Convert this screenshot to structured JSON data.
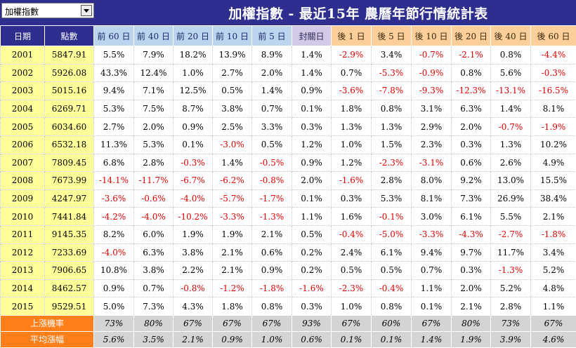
{
  "selector": {
    "value": "加權指數"
  },
  "title": "加權指數 - 最近15年 農曆年節行情統計表",
  "headers": [
    "日期",
    "點數",
    "前 60 日",
    "前 40 日",
    "前 20 日",
    "前 10 日",
    "前 5 日",
    "封關日",
    "後 1 日",
    "後 5 日",
    "後 10 日",
    "後 20 日",
    "後 40 日",
    "後 60 日"
  ],
  "rows": [
    {
      "year": "2001",
      "points": "5847.91",
      "values": [
        "5.5%",
        "7.9%",
        "18.2%",
        "13.9%",
        "8.9%",
        "1.4%",
        "-2.9%",
        "3.4%",
        "-0.7%",
        "-2.1%",
        "0.8%",
        "-4.4%"
      ]
    },
    {
      "year": "2002",
      "points": "5926.08",
      "values": [
        "43.3%",
        "12.4%",
        "1.0%",
        "2.7%",
        "2.0%",
        "1.4%",
        "0.7%",
        "-5.3%",
        "-0.9%",
        "0.8%",
        "5.6%",
        "-0.3%"
      ]
    },
    {
      "year": "2003",
      "points": "5015.16",
      "values": [
        "9.4%",
        "7.1%",
        "12.5%",
        "0.5%",
        "1.4%",
        "0.9%",
        "-3.6%",
        "-7.8%",
        "-9.3%",
        "-12.3%",
        "-13.1%",
        "-16.5%"
      ]
    },
    {
      "year": "2004",
      "points": "6269.71",
      "values": [
        "5.3%",
        "7.5%",
        "8.7%",
        "3.8%",
        "0.7%",
        "0.1%",
        "1.8%",
        "0.8%",
        "3.1%",
        "6.3%",
        "1.4%",
        "8.1%"
      ]
    },
    {
      "year": "2005",
      "points": "6034.60",
      "values": [
        "2.7%",
        "2.0%",
        "0.9%",
        "2.5%",
        "3.3%",
        "0.3%",
        "1.3%",
        "1.3%",
        "2.9%",
        "2.0%",
        "-0.7%",
        "-1.9%"
      ]
    },
    {
      "year": "2006",
      "points": "6532.18",
      "values": [
        "11.3%",
        "5.3%",
        "0.1%",
        "-3.0%",
        "0.5%",
        "1.2%",
        "1.0%",
        "1.5%",
        "2.3%",
        "0.3%",
        "1.3%",
        "10.2%"
      ]
    },
    {
      "year": "2007",
      "points": "7809.45",
      "values": [
        "6.8%",
        "2.8%",
        "-0.3%",
        "1.4%",
        "-0.5%",
        "0.9%",
        "1.2%",
        "-2.3%",
        "-3.1%",
        "0.6%",
        "2.6%",
        "4.9%"
      ]
    },
    {
      "year": "2008",
      "points": "7673.99",
      "values": [
        "-14.1%",
        "-11.7%",
        "-6.7%",
        "-6.2%",
        "-0.8%",
        "2.0%",
        "-1.6%",
        "2.8%",
        "8.0%",
        "9.2%",
        "13.0%",
        "15.5%"
      ]
    },
    {
      "year": "2009",
      "points": "4247.97",
      "values": [
        "-3.6%",
        "-0.6%",
        "-4.0%",
        "-5.7%",
        "-1.7%",
        "0.1%",
        "0.3%",
        "5.3%",
        "8.1%",
        "7.3%",
        "26.9%",
        "38.4%"
      ]
    },
    {
      "year": "2010",
      "points": "7441.84",
      "values": [
        "-4.2%",
        "-4.0%",
        "-10.2%",
        "-3.3%",
        "-1.3%",
        "1.1%",
        "1.6%",
        "-0.1%",
        "3.0%",
        "6.1%",
        "5.5%",
        "2.1%"
      ]
    },
    {
      "year": "2011",
      "points": "9145.35",
      "values": [
        "8.2%",
        "6.0%",
        "1.9%",
        "1.9%",
        "2.1%",
        "0.5%",
        "-0.4%",
        "-5.0%",
        "-3.3%",
        "-4.3%",
        "-2.7%",
        "-1.8%"
      ]
    },
    {
      "year": "2012",
      "points": "7233.69",
      "values": [
        "-4.0%",
        "6.3%",
        "3.8%",
        "2.1%",
        "0.6%",
        "0.2%",
        "2.4%",
        "6.1%",
        "9.4%",
        "9.7%",
        "11.7%",
        "3.4%"
      ]
    },
    {
      "year": "2013",
      "points": "7906.65",
      "values": [
        "10.8%",
        "3.8%",
        "2.2%",
        "2.1%",
        "0.9%",
        "0.2%",
        "0.5%",
        "0.5%",
        "0.7%",
        "0.3%",
        "-1.3%",
        "5.2%"
      ]
    },
    {
      "year": "2014",
      "points": "8462.57",
      "values": [
        "0.9%",
        "0.7%",
        "-0.8%",
        "-1.2%",
        "-1.8%",
        "-1.6%",
        "-2.3%",
        "-0.4%",
        "1.1%",
        "2.0%",
        "5.2%",
        "4.8%"
      ]
    },
    {
      "year": "2015",
      "points": "9529.51",
      "values": [
        "5.0%",
        "7.3%",
        "4.3%",
        "1.8%",
        "0.8%",
        "0.3%",
        "1.0%",
        "0.8%",
        "0.1%",
        "2.1%",
        "2.8%",
        "1.1%"
      ]
    }
  ],
  "summary": [
    {
      "label": "上漲機率",
      "values": [
        "73%",
        "80%",
        "67%",
        "67%",
        "67%",
        "93%",
        "67%",
        "60%",
        "67%",
        "80%",
        "73%",
        "67%"
      ]
    },
    {
      "label": "平均漲幅",
      "values": [
        "5.6%",
        "3.5%",
        "2.1%",
        "0.9%",
        "1.0%",
        "0.6%",
        "0.1%",
        "0.1%",
        "1.4%",
        "1.9%",
        "3.9%",
        "4.6%"
      ]
    }
  ],
  "colors": {
    "header_navy": "#2e2e8e",
    "pre_header": "#bcd4ee",
    "close_header": "#d3c9e6",
    "post_header": "#fccf9a",
    "year_cell": "#ffff99",
    "negative": "#e00000",
    "summary_label": "#ff7f1a",
    "summary_value": "#d4d4d4"
  }
}
